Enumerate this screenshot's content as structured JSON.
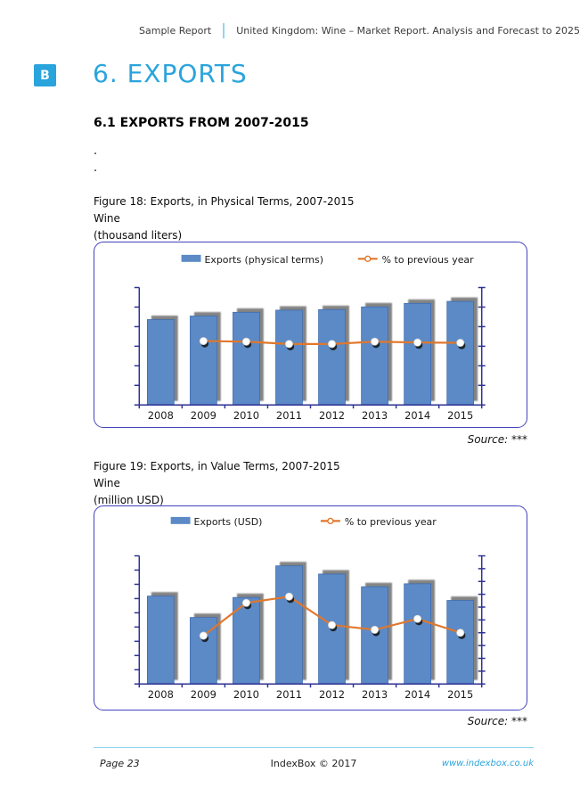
{
  "header": {
    "left_label": "Sample Report",
    "title": "United Kingdom: Wine – Market Report. Analysis and Forecast to 2025"
  },
  "section": {
    "badge": "B",
    "title": "6. EXPORTS",
    "subtitle": "6.1 EXPORTS FROM 2007-2015",
    "placeholder_lines": [
      ".",
      "."
    ]
  },
  "figures": [
    {
      "caption": "Figure 18: Exports, in Physical Terms, 2007-2015",
      "product": "Wine",
      "unit": "(thousand liters)",
      "source": "Source: ***"
    },
    {
      "caption": "Figure 19: Exports, in Value Terms, 2007-2015",
      "product": "Wine",
      "unit": "(million USD)",
      "source": "Source: ***"
    }
  ],
  "footer": {
    "page_label": "Page 23",
    "copyright": "IndexBox © 2017",
    "website": "www.indexbox.co.uk"
  },
  "colors": {
    "accent_blue": "#2AA4DC",
    "light_blue": "#8FD4F0",
    "bar_fill": "#5B8AC6",
    "bar_border": "#3E6CB0",
    "bar_shadow": "#666666",
    "line_orange": "#E1772B",
    "marker_fill": "#FFFFFF",
    "marker_shadow": "#101010",
    "axis_blue": "#2E3192",
    "frame_border": "#4343BE",
    "text_dark": "#1A1A1A"
  },
  "chart_data": [
    {
      "type": "bar",
      "title": "Exports, in Physical Terms, 2007-2015",
      "subtitle": "Wine (thousand liters)",
      "categories": [
        "2008",
        "2009",
        "2010",
        "2011",
        "2012",
        "2013",
        "2014",
        "2015"
      ],
      "series": [
        {
          "name": "Exports (physical terms)",
          "type": "bar",
          "axis": "left",
          "values_pct_of_plot_height": [
            72.7,
            75.7,
            78.9,
            80.7,
            81.2,
            83.5,
            86.5,
            88.2
          ]
        },
        {
          "name": "% to previous year",
          "type": "line",
          "axis": "right",
          "starts_at": "2009",
          "values_pct_of_plot_height": [
            54.4,
            53.9,
            51.9,
            51.9,
            53.9,
            53.2,
            52.9
          ]
        }
      ],
      "value_axis": {
        "tick_labels_visible": false,
        "left_tick_count": 7,
        "right_tick_count": 7
      },
      "legend_position": "top",
      "layout": {
        "frame_top": 271,
        "frame_height": 209,
        "axis_top": 51,
        "baseline": 184,
        "legend": {
          "bar_x": 98,
          "line_x": 297,
          "y": 12
        }
      }
    },
    {
      "type": "bar",
      "title": "Exports, in Value Terms, 2007-2015",
      "subtitle": "Wine (million USD)",
      "categories": [
        "2008",
        "2009",
        "2010",
        "2011",
        "2012",
        "2013",
        "2014",
        "2015"
      ],
      "series": [
        {
          "name": "Exports (USD)",
          "type": "bar",
          "axis": "left",
          "values_pct_of_plot_height": [
            68.6,
            51.9,
            67.5,
            92.2,
            85.8,
            75.9,
            78.2,
            65.2
          ]
        },
        {
          "name": "% to previous year",
          "type": "line",
          "axis": "right",
          "starts_at": "2009",
          "values_pct_of_plot_height": [
            37.7,
            63.3,
            68.2,
            46.0,
            42.3,
            50.8,
            40.0
          ]
        }
      ],
      "value_axis": {
        "tick_labels_visible": false,
        "left_tick_count": 10,
        "right_tick_count": 11
      },
      "legend_position": "top",
      "layout": {
        "frame_top": 567,
        "frame_height": 230,
        "axis_top": 56,
        "baseline": 201,
        "legend": {
          "bar_x": 86,
          "line_x": 255,
          "y": 10
        }
      }
    }
  ]
}
